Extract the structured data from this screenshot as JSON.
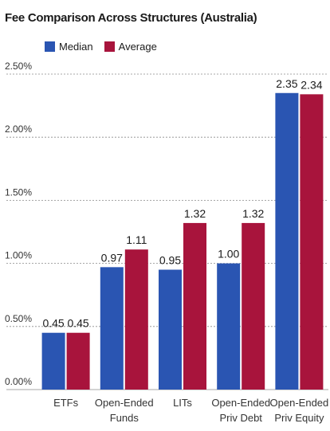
{
  "chart_data": {
    "type": "bar",
    "title": "Fee Comparison Across Structures (Australia)",
    "categories": [
      "ETFs",
      "Open-Ended\nFunds",
      "LITs",
      "Open-Ended\nPriv Debt",
      "Open-Ended\nPriv Equity"
    ],
    "series": [
      {
        "name": "Median",
        "color": "#2a55b2",
        "values": [
          0.45,
          0.97,
          0.95,
          1.0,
          2.35
        ]
      },
      {
        "name": "Average",
        "color": "#a8143c",
        "values": [
          0.45,
          1.11,
          1.32,
          1.32,
          2.34
        ]
      }
    ],
    "data_labels": [
      [
        "0.45",
        "0.97",
        "0.95",
        "1.00",
        "2.35"
      ],
      [
        "0.45",
        "1.11",
        "1.32",
        "1.32",
        "2.34"
      ]
    ],
    "ylim": [
      0,
      2.5
    ],
    "yticks": [
      "0.00%",
      "0.50%",
      "1.00%",
      "1.50%",
      "2.00%",
      "2.50%"
    ],
    "ytick_values": [
      0,
      0.5,
      1.0,
      1.5,
      2.0,
      2.5
    ],
    "grid": "dashed horizontal",
    "legend": "top-left",
    "xlabel": "",
    "ylabel": ""
  }
}
